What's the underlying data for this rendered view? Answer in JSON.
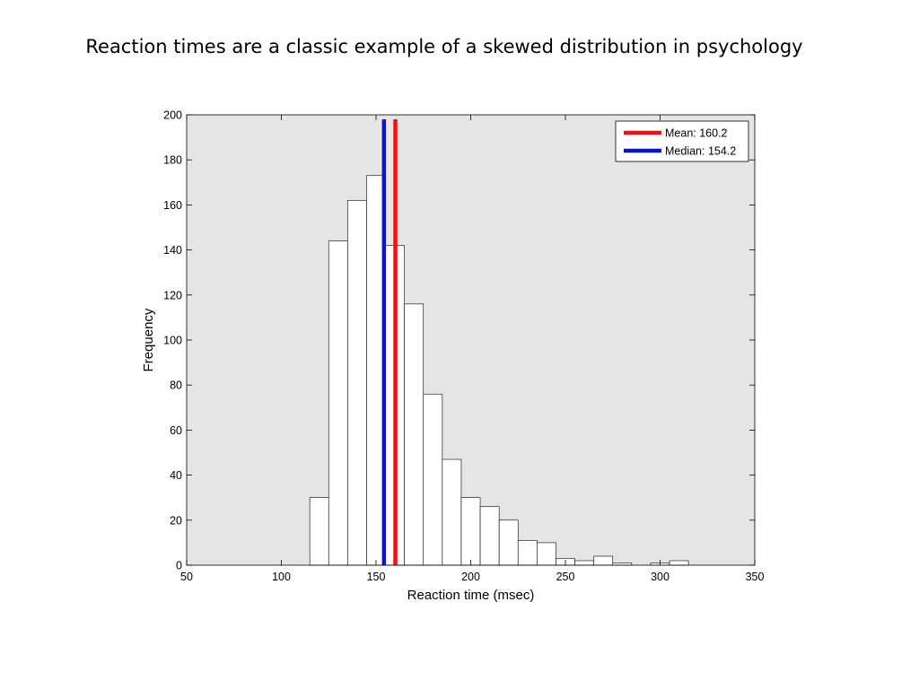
{
  "slide": {
    "title": "Reaction times are a classic example of a skewed distribution in psychology"
  },
  "chart_data": {
    "type": "bar",
    "title": "Reaction times are a classic example of a skewed distribution in psychology",
    "xlabel": "Reaction time (msec)",
    "ylabel": "Frequency",
    "xlim": [
      50,
      350
    ],
    "ylim": [
      0,
      200
    ],
    "xticks": [
      50,
      100,
      150,
      200,
      250,
      300,
      350
    ],
    "yticks": [
      0,
      20,
      40,
      60,
      80,
      100,
      120,
      140,
      160,
      180,
      200
    ],
    "grid": false,
    "background_color": "#e5e5e5",
    "bar_fill": "#ffffff",
    "bar_edge": "#000000",
    "bins": [
      {
        "from": 115,
        "to": 125,
        "count": 30
      },
      {
        "from": 125,
        "to": 135,
        "count": 144
      },
      {
        "from": 135,
        "to": 145,
        "count": 162
      },
      {
        "from": 145,
        "to": 155,
        "count": 173
      },
      {
        "from": 155,
        "to": 165,
        "count": 142
      },
      {
        "from": 165,
        "to": 175,
        "count": 116
      },
      {
        "from": 175,
        "to": 185,
        "count": 76
      },
      {
        "from": 185,
        "to": 195,
        "count": 47
      },
      {
        "from": 195,
        "to": 205,
        "count": 30
      },
      {
        "from": 205,
        "to": 215,
        "count": 26
      },
      {
        "from": 215,
        "to": 225,
        "count": 20
      },
      {
        "from": 225,
        "to": 235,
        "count": 11
      },
      {
        "from": 235,
        "to": 245,
        "count": 10
      },
      {
        "from": 245,
        "to": 255,
        "count": 3
      },
      {
        "from": 255,
        "to": 265,
        "count": 2
      },
      {
        "from": 265,
        "to": 275,
        "count": 4
      },
      {
        "from": 275,
        "to": 285,
        "count": 1
      },
      {
        "from": 285,
        "to": 295,
        "count": 0
      },
      {
        "from": 295,
        "to": 305,
        "count": 1
      },
      {
        "from": 305,
        "to": 315,
        "count": 2
      }
    ],
    "reference_lines": [
      {
        "name": "Mean: 160.2",
        "value": 160.2,
        "color": "#ee1111"
      },
      {
        "name": "Median: 154.2",
        "value": 154.2,
        "color": "#0a14c8"
      }
    ],
    "legend": {
      "placement": "top-right",
      "entries": [
        "Mean: 160.2",
        "Median: 154.2"
      ]
    }
  }
}
